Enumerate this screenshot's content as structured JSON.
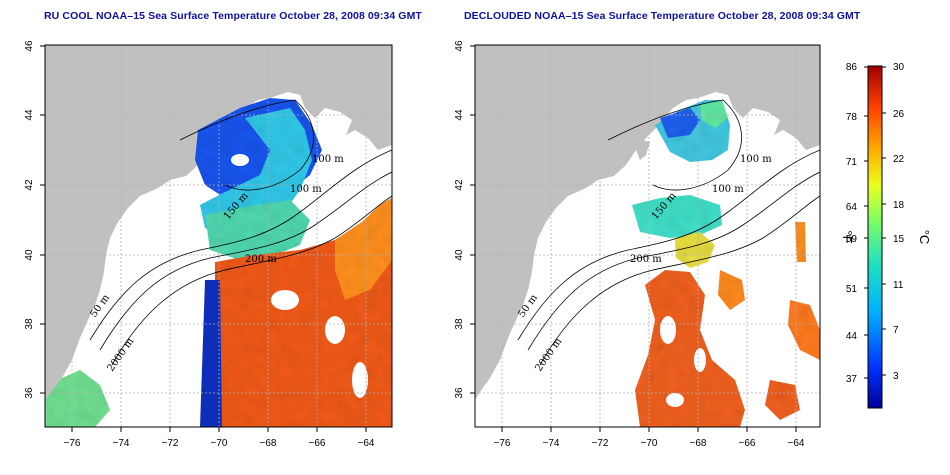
{
  "panels": [
    {
      "title": "RU COOL NOAA–15 Sea Surface Temperature October 28, 2008 09:34 GMT",
      "x_ticks": [
        "−76",
        "−74",
        "−72",
        "−70",
        "−68",
        "−66",
        "−64"
      ],
      "y_ticks": [
        "36",
        "38",
        "40",
        "42",
        "44",
        "46"
      ],
      "contour_labels": [
        "100 m",
        "100 m",
        "200 m",
        "50 m",
        "2000 m",
        "150 m"
      ]
    },
    {
      "title": "DECLOUDED NOAA–15 Sea Surface Temperature October 28, 2008 09:34 GMT",
      "x_ticks": [
        "−76",
        "−74",
        "−72",
        "−70",
        "−68",
        "−66",
        "−64"
      ],
      "y_ticks": [
        "36",
        "38",
        "40",
        "42",
        "44",
        "46"
      ],
      "contour_labels": [
        "100 m",
        "100 m",
        "200 m",
        "50 m",
        "2000 m",
        "150 m"
      ]
    }
  ],
  "colorbar": {
    "fahrenheit_label": "°F",
    "celsius_label": "°C",
    "fahrenheit_ticks": [
      "86",
      "78",
      "71",
      "64",
      "59",
      "51",
      "44",
      "37"
    ],
    "celsius_ticks": [
      "30",
      "26",
      "22",
      "18",
      "15",
      "11",
      "7",
      "3"
    ]
  },
  "map_extent": {
    "lon": [
      -77,
      -63
    ],
    "lat": [
      35,
      46
    ]
  },
  "colors": {
    "land": "#c0c0c0",
    "ocean_nodata": "#ffffff",
    "contour": "#000000",
    "grid": "#b0b0b0",
    "title": "#1010a0"
  }
}
